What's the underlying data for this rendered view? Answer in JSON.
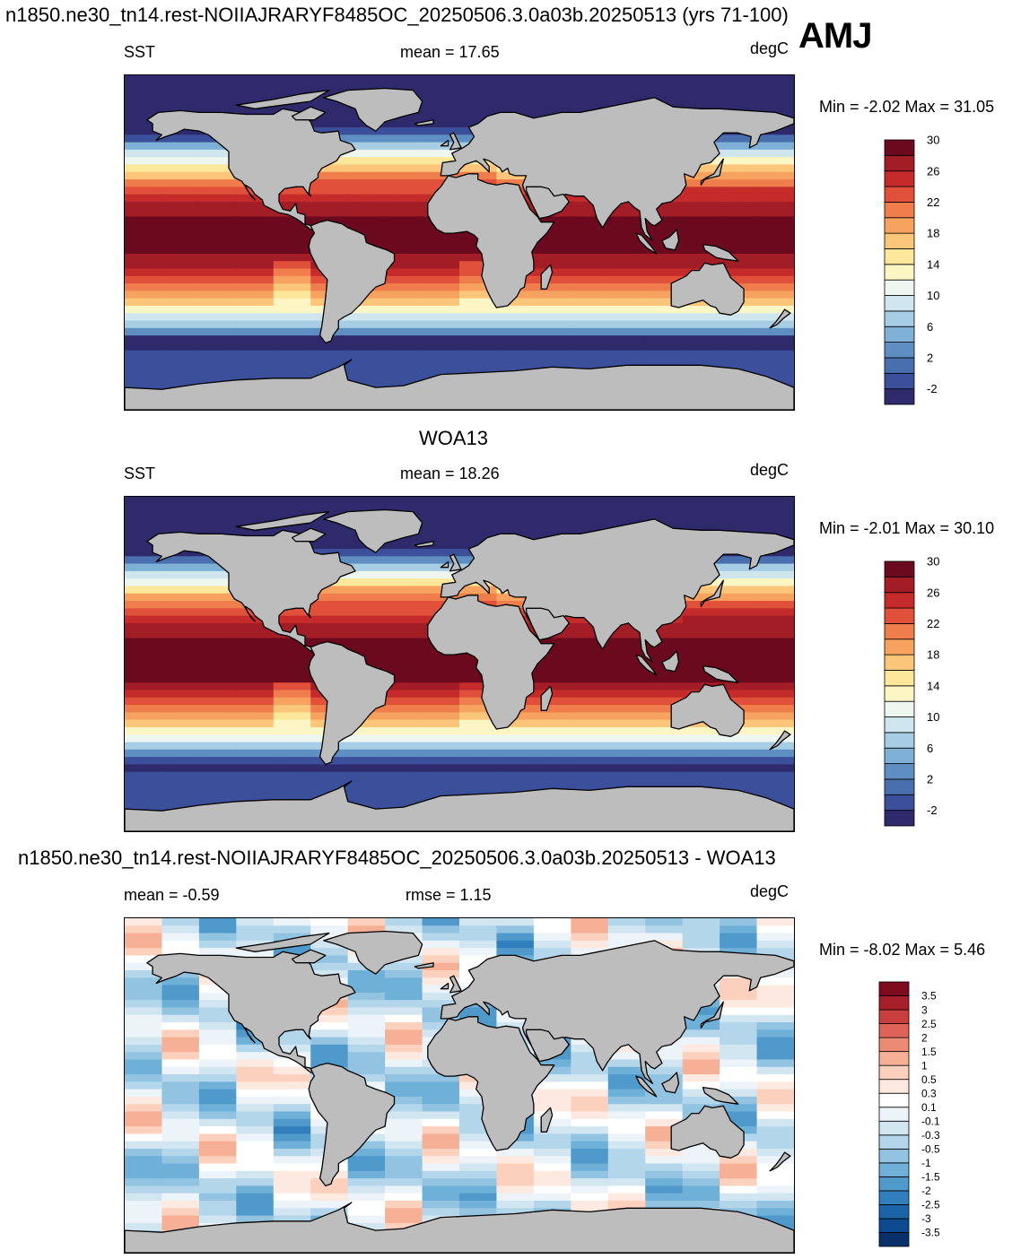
{
  "header": {
    "title": "n1850.ne30_tn14.rest-NOIIAJRARYF8485OC_20250506.3.0a03b.20250513 (yrs 71-100)",
    "season": "AMJ"
  },
  "panels": [
    {
      "id": "model",
      "panel_title": "",
      "variable": "SST",
      "stat_text": "mean =  17.65",
      "stat2_text": "",
      "units": "degC",
      "minmax": "Min =  -2.02 Max =  31.05",
      "colormap": "sst",
      "colorbar": {
        "colors": [
          "#2f2a6b",
          "#3b4f9a",
          "#4a6fae",
          "#5f8fc2",
          "#7fb1d6",
          "#a6cde3",
          "#cfe6ee",
          "#eef6f0",
          "#fbf6c3",
          "#fde79a",
          "#fbc57a",
          "#f7a35f",
          "#f07e4c",
          "#e1503a",
          "#c52b2b",
          "#a31d27",
          "#6b0a1f"
        ],
        "labels": [
          "-2",
          "2",
          "6",
          "10",
          "14",
          "18",
          "22",
          "26",
          "30"
        ]
      }
    },
    {
      "id": "obs",
      "panel_title": "WOA13",
      "variable": "SST",
      "stat_text": "mean =  18.26",
      "stat2_text": "",
      "units": "degC",
      "minmax": "Min =  -2.01 Max =  30.10",
      "colormap": "sst",
      "colorbar": {
        "colors": [
          "#2f2a6b",
          "#3b4f9a",
          "#4a6fae",
          "#5f8fc2",
          "#7fb1d6",
          "#a6cde3",
          "#cfe6ee",
          "#eef6f0",
          "#fbf6c3",
          "#fde79a",
          "#fbc57a",
          "#f7a35f",
          "#f07e4c",
          "#e1503a",
          "#c52b2b",
          "#a31d27",
          "#6b0a1f"
        ],
        "labels": [
          "-2",
          "2",
          "6",
          "10",
          "14",
          "18",
          "22",
          "26",
          "30"
        ]
      }
    },
    {
      "id": "diff",
      "panel_title": "n1850.ne30_tn14.rest-NOIIAJRARYF8485OC_20250506.3.0a03b.20250513 - WOA13",
      "variable": "",
      "stat_text": "mean =  -0.59",
      "stat2_text": "rmse =   1.15",
      "units": "degC",
      "minmax": "Min =  -8.02 Max =   5.46",
      "colormap": "diff",
      "colorbar": {
        "colors": [
          "#08306b",
          "#0d4a8f",
          "#1b64a8",
          "#3180bd",
          "#4f99cb",
          "#6fb0d8",
          "#92c4e2",
          "#b3d6eb",
          "#d2e6f2",
          "#ecf4f9",
          "#ffffff",
          "#fde9df",
          "#fbd0bc",
          "#f5b096",
          "#ec8b73",
          "#dd6457",
          "#c83f3d",
          "#a81f2a",
          "#7e0c1e"
        ],
        "labels": [
          "-3.5",
          "-3",
          "-2.5",
          "-2",
          "-1.5",
          "-1",
          "-0.5",
          "-0.3",
          "-0.1",
          "0.1",
          "0.3",
          "0.5",
          "1",
          "1.5",
          "2",
          "2.5",
          "3",
          "3.5"
        ]
      }
    }
  ]
}
